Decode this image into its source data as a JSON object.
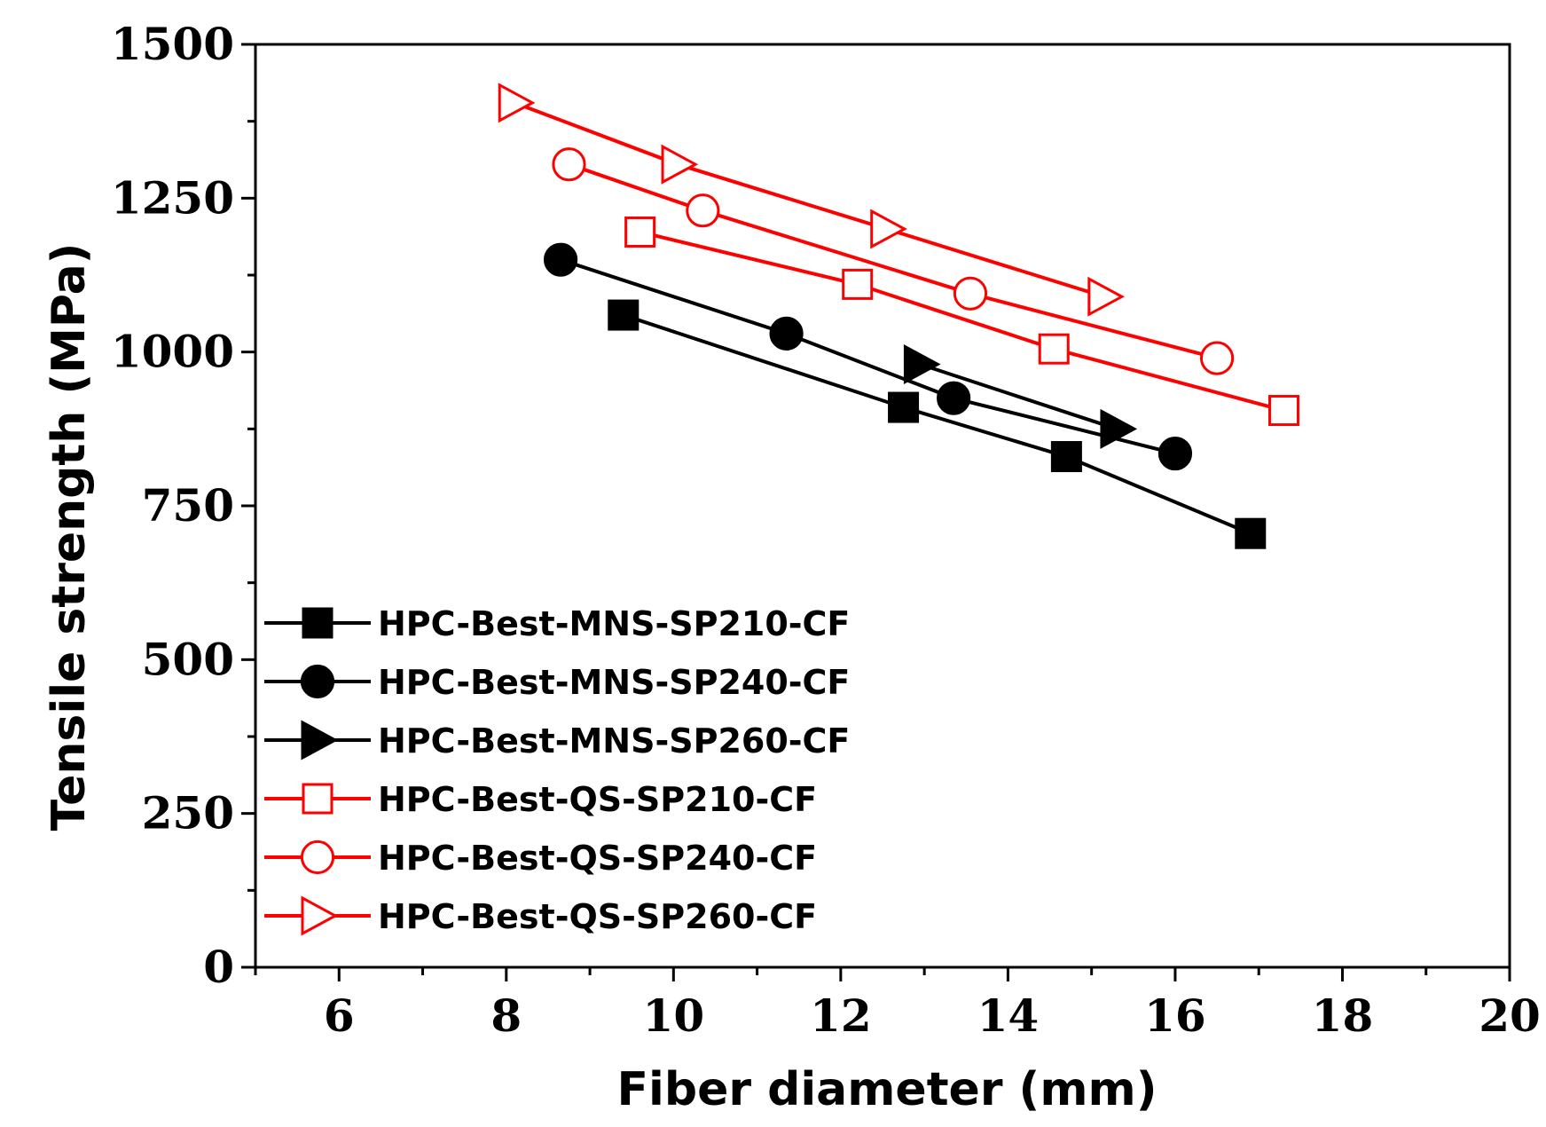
{
  "chart_data": {
    "type": "line",
    "title": "",
    "xlabel": "Fiber diameter (mm)",
    "ylabel": "Tensile strength (MPa)",
    "xlim": [
      5,
      20
    ],
    "ylim": [
      0,
      1500
    ],
    "x_ticks": [
      6,
      8,
      10,
      12,
      14,
      16,
      18,
      20
    ],
    "x_minor_ticks": [
      5,
      7,
      9,
      11,
      13,
      15,
      17,
      19
    ],
    "y_ticks": [
      0,
      250,
      500,
      750,
      1000,
      1250,
      1500
    ],
    "y_minor_ticks": [
      125,
      375,
      625,
      875,
      1125,
      1375
    ],
    "legend_position": "bottom-left",
    "grid": false,
    "series": [
      {
        "name": "HPC-Best-MNS-SP210-CF",
        "color": "#000000",
        "marker": "square",
        "filled": true,
        "points": [
          [
            9.4,
            1060
          ],
          [
            12.75,
            910
          ],
          [
            14.7,
            830
          ],
          [
            16.9,
            705
          ]
        ]
      },
      {
        "name": "HPC-Best-MNS-SP240-CF",
        "color": "#000000",
        "marker": "circle",
        "filled": true,
        "points": [
          [
            8.65,
            1150
          ],
          [
            11.35,
            1030
          ],
          [
            13.35,
            925
          ],
          [
            16.0,
            835
          ]
        ]
      },
      {
        "name": "HPC-Best-MNS-SP260-CF",
        "color": "#000000",
        "marker": "triangle-right",
        "filled": true,
        "points": [
          [
            12.95,
            980
          ],
          [
            15.3,
            875
          ]
        ]
      },
      {
        "name": "HPC-Best-QS-SP210-CF",
        "color": "#ff0000",
        "marker": "square",
        "filled": false,
        "points": [
          [
            9.6,
            1195
          ],
          [
            12.2,
            1110
          ],
          [
            14.55,
            1005
          ],
          [
            17.3,
            905
          ]
        ]
      },
      {
        "name": "HPC-Best-QS-SP240-CF",
        "color": "#ff0000",
        "marker": "circle",
        "filled": false,
        "points": [
          [
            8.75,
            1305
          ],
          [
            10.35,
            1230
          ],
          [
            13.55,
            1095
          ],
          [
            16.5,
            990
          ]
        ]
      },
      {
        "name": "HPC-Best-QS-SP260-CF",
        "color": "#ff0000",
        "marker": "triangle-right",
        "filled": false,
        "points": [
          [
            8.1,
            1405
          ],
          [
            10.05,
            1305
          ],
          [
            12.55,
            1200
          ],
          [
            15.15,
            1090
          ]
        ]
      }
    ]
  }
}
